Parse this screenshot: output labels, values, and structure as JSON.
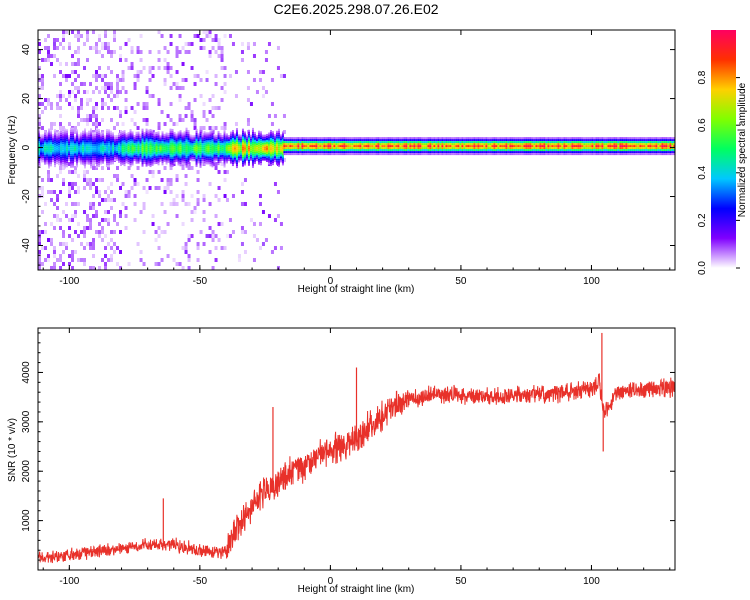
{
  "title": "C2E6.2025.298.07.26.E02",
  "chart_data": [
    {
      "type": "heatmap",
      "name": "spectrogram",
      "xlabel": "Height of straight line (km)",
      "ylabel": "Frequency (Hz)",
      "xlim": [
        -112,
        132
      ],
      "ylim": [
        -50,
        48
      ],
      "xticks": [
        -100,
        -50,
        0,
        50,
        100
      ],
      "yticks": [
        -40,
        -20,
        0,
        20,
        40
      ],
      "colorbar": {
        "label": "Normalized spectral amplitude",
        "range": [
          0,
          1
        ],
        "ticks": [
          "0.0",
          "0.2",
          "0.4",
          "0.6",
          "0.8"
        ],
        "colormap": [
          "#ffffff",
          "#8000ff",
          "#0000ff",
          "#00c8ff",
          "#00ff60",
          "#80ff00",
          "#ffd000",
          "#ff3000",
          "#ff0060"
        ]
      },
      "bands": [
        {
          "x": [
            -112,
            -80
          ],
          "center_hz": 0,
          "peak": 0.45,
          "noise": "strong"
        },
        {
          "x": [
            -80,
            -40
          ],
          "center_hz": 0,
          "peak": 0.6,
          "noise": "moderate"
        },
        {
          "x": [
            -40,
            -18
          ],
          "center_hz": 0,
          "peak": 0.8,
          "noise": "weak"
        },
        {
          "x": [
            -18,
            132
          ],
          "center_hz": 1,
          "peak": 0.95,
          "noise": "none"
        }
      ]
    },
    {
      "type": "line",
      "name": "snr",
      "xlabel": "Height of straight line (km)",
      "ylabel": "SNR (10 * v/v)",
      "xlim": [
        -112,
        132
      ],
      "ylim": [
        0,
        4900
      ],
      "xticks": [
        -100,
        -50,
        0,
        50,
        100
      ],
      "yticks": [
        1000,
        2000,
        3000,
        4000
      ],
      "color": "#e8312a",
      "series": [
        {
          "name": "SNR",
          "x": [
            -112,
            -100,
            -90,
            -80,
            -70,
            -60,
            -50,
            -45,
            -40,
            -35,
            -30,
            -25,
            -20,
            -15,
            -10,
            -5,
            0,
            5,
            10,
            15,
            20,
            25,
            30,
            35,
            40,
            50,
            60,
            70,
            80,
            90,
            100,
            103,
            105,
            110,
            120,
            132
          ],
          "values": [
            250,
            300,
            380,
            420,
            500,
            520,
            400,
            350,
            400,
            900,
            1300,
            1600,
            1800,
            2000,
            2100,
            2300,
            2400,
            2500,
            2700,
            2900,
            3100,
            3300,
            3450,
            3500,
            3550,
            3550,
            3500,
            3520,
            3560,
            3600,
            3650,
            3800,
            3200,
            3600,
            3650,
            3700
          ]
        }
      ],
      "spikes": [
        {
          "x": -64,
          "value": 1450
        },
        {
          "x": -22,
          "value": 3300
        },
        {
          "x": 10,
          "value": 4100
        },
        {
          "x": 104,
          "value": 4800
        },
        {
          "x": 104.5,
          "value": 2400
        }
      ]
    }
  ]
}
